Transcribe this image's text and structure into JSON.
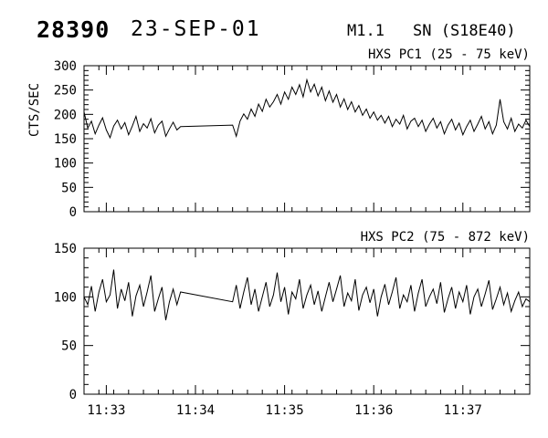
{
  "header": {
    "event_number": "28390",
    "date": "23-SEP-01",
    "goes_class": "M1.1",
    "flare_type_location": "SN (S18E40)"
  },
  "chart_data": [
    {
      "type": "line",
      "title": "HXS PC1 (25 - 75 keV)",
      "ylabel": "CTS/SEC",
      "line_color": "#000000",
      "x_axis": {
        "min": 0,
        "max": 300,
        "unit": "seconds since 11:32:45",
        "minor_step": 10,
        "major_ticks": [
          {
            "t": 15,
            "label": "11:33"
          },
          {
            "t": 75,
            "label": "11:34"
          },
          {
            "t": 135,
            "label": "11:35"
          },
          {
            "t": 195,
            "label": "11:36"
          },
          {
            "t": 255,
            "label": "11:37"
          }
        ],
        "show_labels": false
      },
      "y_axis": {
        "min": 0,
        "max": 300,
        "major_step": 50,
        "minor_step": 10
      },
      "segments": [
        {
          "t_start": 0,
          "dt": 2.5,
          "values": [
            205,
            172,
            186,
            160,
            178,
            193,
            168,
            152,
            176,
            188,
            170,
            183,
            158,
            176,
            196,
            165,
            181,
            172,
            191,
            162,
            178,
            186,
            155,
            170,
            184,
            168,
            175
          ]
        },
        {
          "t_start": 100,
          "dt": 2.5,
          "values": [
            178,
            155,
            186,
            201,
            190,
            211,
            196,
            221,
            206,
            231,
            215,
            226,
            241,
            221,
            246,
            231,
            256,
            241,
            261,
            236,
            271,
            246,
            262,
            238,
            256,
            228,
            248,
            225,
            241,
            215,
            232,
            210,
            226,
            205,
            218,
            198,
            211,
            192,
            205,
            188,
            198,
            182,
            196,
            175,
            190,
            180,
            198,
            170,
            186,
            192,
            175,
            188,
            165,
            180,
            192,
            172,
            185,
            160,
            178,
            190,
            168,
            182,
            158,
            175,
            188,
            165,
            180,
            196,
            170,
            185,
            160,
            178,
            231,
            185,
            170,
            192,
            165,
            180,
            172,
            188,
            175
          ]
        }
      ]
    },
    {
      "type": "line",
      "title": "HXS PC2 (75 - 872 keV)",
      "ylabel": "",
      "line_color": "#000000",
      "x_axis": {
        "min": 0,
        "max": 300,
        "unit": "seconds since 11:32:45",
        "minor_step": 10,
        "major_ticks": [
          {
            "t": 15,
            "label": "11:33"
          },
          {
            "t": 75,
            "label": "11:34"
          },
          {
            "t": 135,
            "label": "11:35"
          },
          {
            "t": 195,
            "label": "11:36"
          },
          {
            "t": 255,
            "label": "11:37"
          }
        ],
        "show_labels": true
      },
      "y_axis": {
        "min": 0,
        "max": 150,
        "major_step": 50,
        "minor_step": 10
      },
      "segments": [
        {
          "t_start": 0,
          "dt": 2.5,
          "values": [
            100,
            92,
            111,
            85,
            105,
            118,
            95,
            102,
            128,
            88,
            108,
            96,
            115,
            80,
            101,
            112,
            90,
            105,
            122,
            85,
            98,
            110,
            76,
            95,
            108,
            92,
            105
          ]
        },
        {
          "t_start": 100,
          "dt": 2.5,
          "values": [
            95,
            112,
            88,
            105,
            120,
            92,
            108,
            85,
            100,
            115,
            90,
            102,
            125,
            95,
            110,
            82,
            105,
            98,
            118,
            88,
            102,
            112,
            92,
            106,
            85,
            100,
            115,
            95,
            108,
            122,
            90,
            104,
            96,
            118,
            86,
            102,
            110,
            94,
            108,
            80,
            100,
            113,
            92,
            105,
            120,
            88,
            102,
            95,
            112,
            85,
            104,
            118,
            90,
            100,
            108,
            93,
            115,
            84,
            98,
            110,
            88,
            105,
            95,
            112,
            82,
            100,
            108,
            90,
            103,
            117,
            87,
            98,
            110,
            92,
            104,
            85,
            96,
            105,
            90,
            98,
            95
          ]
        }
      ]
    }
  ]
}
